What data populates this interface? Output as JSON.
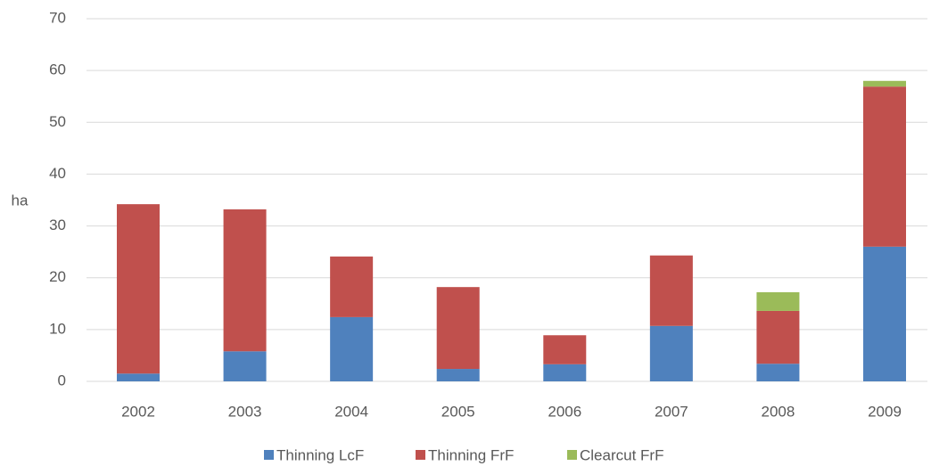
{
  "chart_data": {
    "type": "stacked_bar",
    "y_label": "ha",
    "categories": [
      "2002",
      "2003",
      "2004",
      "2005",
      "2006",
      "2007",
      "2008",
      "2009"
    ],
    "series": [
      {
        "name": "Thinning LcF",
        "color": "#4f81bd",
        "values": [
          1.5,
          5.8,
          12.4,
          2.4,
          3.3,
          10.7,
          3.4,
          26.0
        ]
      },
      {
        "name": "Thinning FrF",
        "color": "#c0504d",
        "values": [
          32.7,
          27.4,
          11.7,
          15.8,
          5.6,
          13.6,
          10.2,
          30.9
        ]
      },
      {
        "name": "Clearcut FrF",
        "color": "#9bbb59",
        "values": [
          0,
          0,
          0,
          0,
          0,
          0,
          3.6,
          1.1
        ]
      }
    ],
    "ylim": [
      0,
      70
    ],
    "yticks": [
      0,
      10,
      20,
      30,
      40,
      50,
      60,
      70
    ],
    "grid": true,
    "legend": "bottom"
  }
}
